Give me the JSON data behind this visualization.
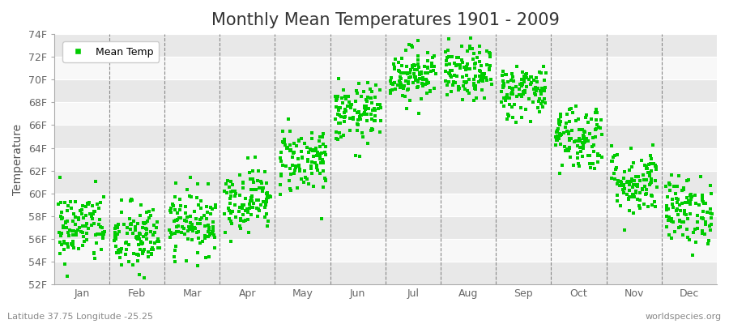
{
  "title": "Monthly Mean Temperatures 1901 - 2009",
  "ylabel": "Temperature",
  "xlabel_months": [
    "Jan",
    "Feb",
    "Mar",
    "Apr",
    "May",
    "Jun",
    "Jul",
    "Aug",
    "Sep",
    "Oct",
    "Nov",
    "Dec"
  ],
  "ytick_labels": [
    "52F",
    "54F",
    "56F",
    "58F",
    "60F",
    "62F",
    "64F",
    "66F",
    "68F",
    "70F",
    "72F",
    "74F"
  ],
  "ytick_values": [
    52,
    54,
    56,
    58,
    60,
    62,
    64,
    66,
    68,
    70,
    72,
    74
  ],
  "ylim": [
    52,
    74
  ],
  "dot_color": "#00CC00",
  "bg_color": "#FFFFFF",
  "plot_bg_color": "#F0F0F0",
  "legend_label": "Mean Temp",
  "subtitle": "Latitude 37.75 Longitude -25.25",
  "watermark": "worldspecies.org",
  "monthly_mean_F": [
    57.0,
    56.0,
    57.5,
    59.5,
    63.0,
    67.0,
    70.5,
    70.5,
    69.0,
    65.0,
    61.0,
    58.5
  ],
  "monthly_std_F": [
    1.6,
    1.6,
    1.4,
    1.4,
    1.5,
    1.3,
    1.2,
    1.2,
    1.2,
    1.5,
    1.5,
    1.5
  ],
  "n_years": 109,
  "seed": 42,
  "title_fontsize": 15,
  "axis_label_fontsize": 10,
  "tick_fontsize": 9,
  "subtitle_fontsize": 8,
  "watermark_fontsize": 8,
  "dot_size": 6,
  "dot_alpha": 1.0,
  "band_colors": [
    "#E8E8E8",
    "#F8F8F8"
  ]
}
